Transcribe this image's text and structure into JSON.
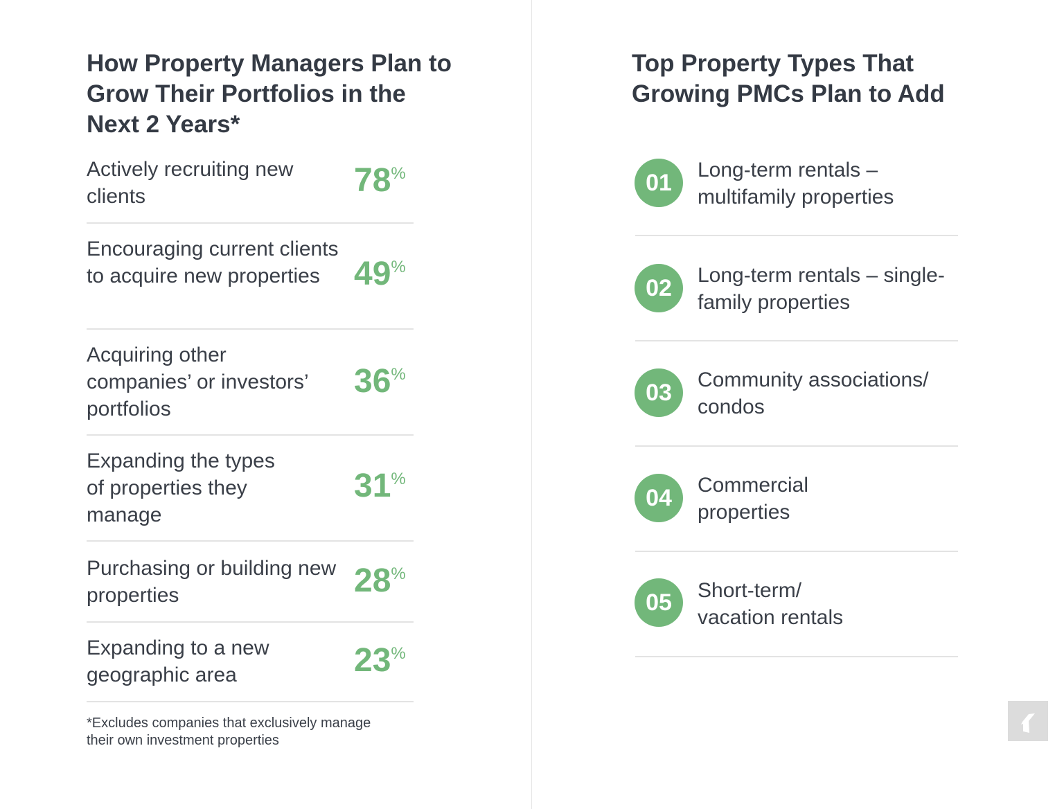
{
  "left": {
    "title": "How Property Managers Plan to Grow Their Portfolios in the Next 2 Years*",
    "rows": [
      {
        "label": "Actively recruiting new clients",
        "value": "78",
        "unit": "%"
      },
      {
        "label": "Encouraging current clients to acquire new properties",
        "value": "49",
        "unit": "%"
      },
      {
        "label": "Acquiring other companies’ or investors’ portfolios",
        "value": "36",
        "unit": "%"
      },
      {
        "label": "Expanding the types of properties they manage",
        "value": "31",
        "unit": "%"
      },
      {
        "label": "Purchasing or building new properties",
        "value": "28",
        "unit": "%"
      },
      {
        "label": "Expanding to a new geographic area",
        "value": "23",
        "unit": "%"
      }
    ],
    "footnote": "*Excludes companies that exclusively manage their own investment properties"
  },
  "right": {
    "title": "Top Property Types That Growing PMCs Plan to Add",
    "items": [
      {
        "num": "01",
        "label": "Long-term rentals – multifamily properties"
      },
      {
        "num": "02",
        "label": "Long-term rentals – single-family properties"
      },
      {
        "num": "03",
        "label": "Community associations/ condos"
      },
      {
        "num": "04",
        "label": "Commercial properties"
      },
      {
        "num": "05",
        "label": "Short-term/ vacation rentals"
      }
    ]
  },
  "colors": {
    "accent": "#72b77a",
    "text": "#3a3f48"
  },
  "logo_icon": "brand-logo-icon"
}
